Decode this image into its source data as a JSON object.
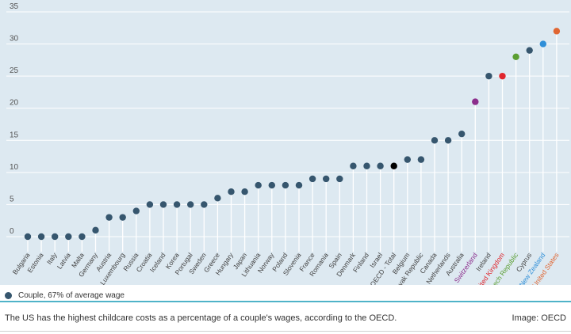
{
  "chart_data": {
    "type": "scatter",
    "categories": [
      "Bulgaria",
      "Estonia",
      "Italy",
      "Latvia",
      "Malta",
      "Germany",
      "Austria",
      "Luxembourg",
      "Russia",
      "Croatia",
      "Iceland",
      "Korea",
      "Portugal",
      "Sweden",
      "Greece",
      "Hungary",
      "Japan",
      "Lithuania",
      "Norway",
      "Poland",
      "Slovenia",
      "France",
      "Romania",
      "Spain",
      "Denmark",
      "Finland",
      "Israel",
      "OECD - Total",
      "Belgium",
      "Slovak Republic",
      "Canada",
      "Netherlands",
      "Australia",
      "Switzerland",
      "Ireland",
      "United Kingdom",
      "Czech Republic",
      "Cyprus",
      "New Zealand",
      "United States"
    ],
    "series": [
      {
        "name": "Couple, 67% of average wage",
        "values": [
          0,
          0,
          0,
          0,
          0,
          1,
          3,
          3,
          4,
          5,
          5,
          5,
          5,
          5,
          6,
          7,
          7,
          8,
          8,
          8,
          8,
          9,
          9,
          9,
          11,
          11,
          11,
          11,
          12,
          12,
          15,
          15,
          16,
          21,
          25,
          25,
          28,
          29,
          30,
          32
        ]
      }
    ],
    "yticks": [
      0,
      5,
      10,
      15,
      20,
      25,
      30,
      35
    ],
    "ylim": [
      0,
      35
    ],
    "grid": true,
    "default_color": "#36566e",
    "highlight_colors": {
      "OECD - Total": "#000000",
      "Switzerland": "#8c2e8c",
      "United Kingdom": "#e0262d",
      "Czech Republic": "#5b9e32",
      "New Zealand": "#2f8fd8",
      "United States": "#e06632"
    }
  },
  "legend": {
    "label": "Couple, 67% of average wage",
    "color": "#36566e"
  },
  "caption": "The US has the highest childcare costs as a percentage of a couple's wages, according to the OECD.",
  "credit": "Image: OECD"
}
